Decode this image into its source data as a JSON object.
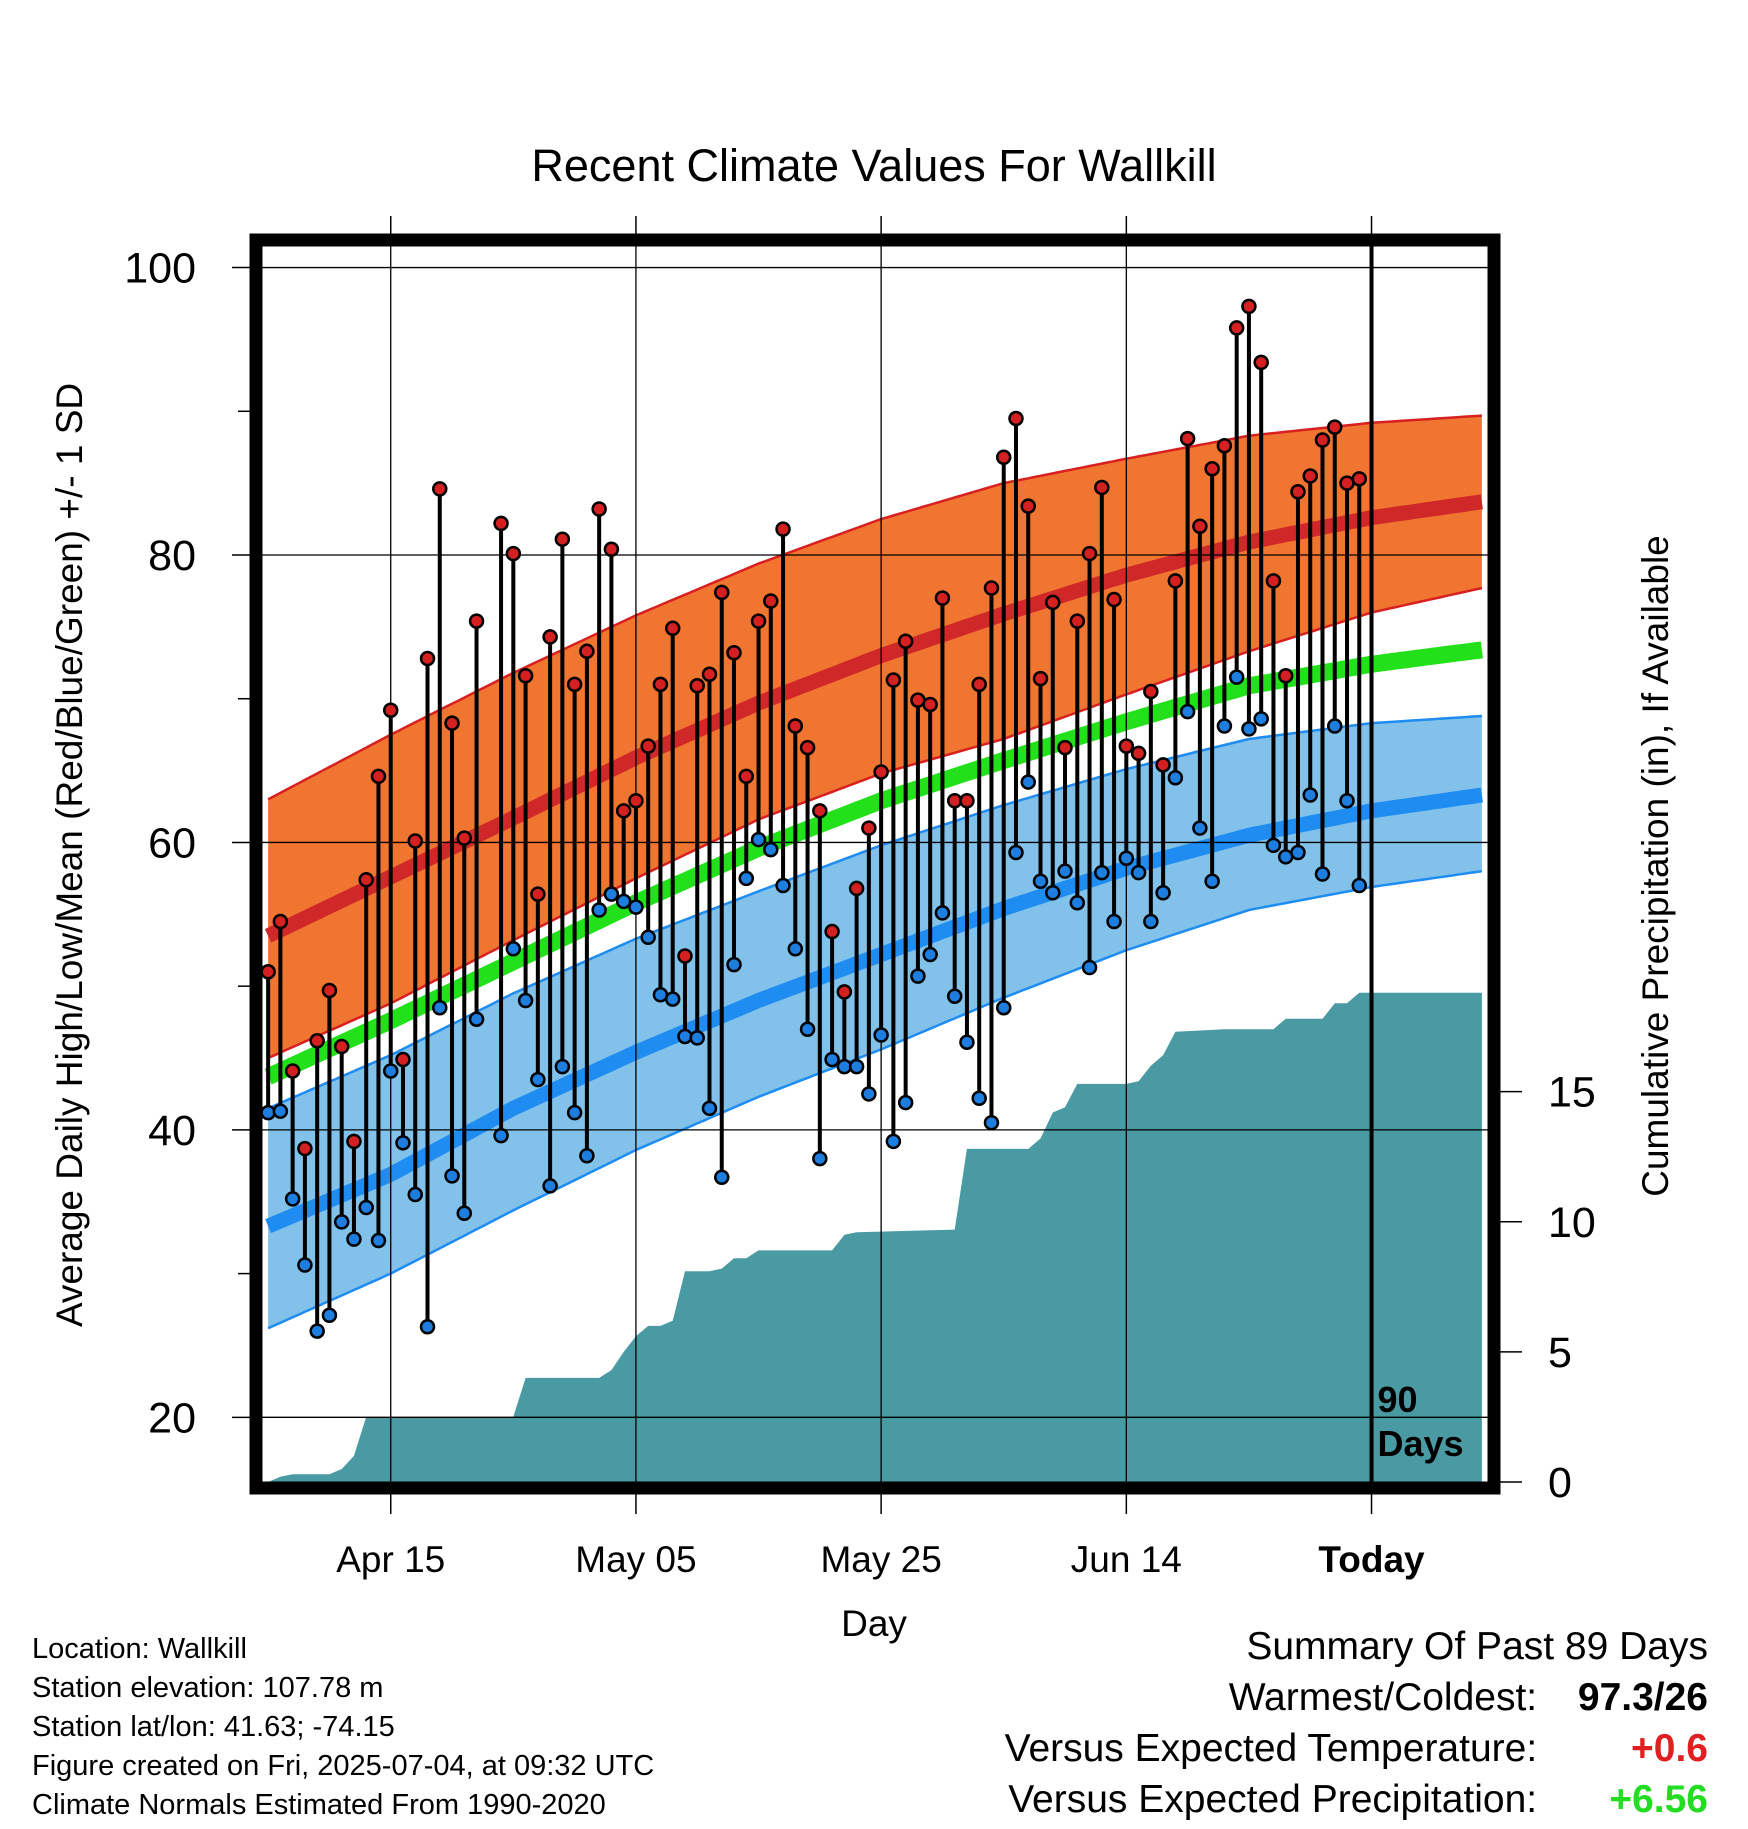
{
  "chart_data": {
    "type": "line",
    "title": "Recent Climate Values For Wallkill",
    "xlabel": "Day",
    "ylabel": "Average Daily High/Low/Mean (Red/Blue/Green) +/- 1 SD",
    "y2label": "Cumulative Precipitation (in), If Available",
    "ylim": [
      15.5,
      101.5
    ],
    "y2lim": [
      0,
      47.5
    ],
    "y_ticks": [
      "20",
      "40",
      "60",
      "80",
      "100"
    ],
    "y2_ticks": [
      "0",
      "5",
      "10",
      "15"
    ],
    "x_ticks": [
      "Apr 15",
      "May 05",
      "May 25",
      "Jun 14",
      "Today"
    ],
    "x_tick_days": [
      10,
      30,
      50,
      70,
      90
    ],
    "xlim": [
      -0.5,
      99.5
    ],
    "period_label": "90\nDays",
    "grid": true,
    "normal_high": {
      "mean": [
        [
          0,
          53.5
        ],
        [
          10,
          57.6
        ],
        [
          20,
          61.7
        ],
        [
          30,
          65.9
        ],
        [
          40,
          69.7
        ],
        [
          50,
          73.0
        ],
        [
          60,
          75.9
        ],
        [
          70,
          78.6
        ],
        [
          80,
          80.9
        ],
        [
          90,
          82.6
        ],
        [
          99,
          83.7
        ]
      ],
      "upper": [
        [
          0,
          63.0
        ],
        [
          10,
          67.5
        ],
        [
          20,
          71.8
        ],
        [
          30,
          75.8
        ],
        [
          40,
          79.4
        ],
        [
          50,
          82.5
        ],
        [
          60,
          85.0
        ],
        [
          70,
          86.7
        ],
        [
          80,
          88.3
        ],
        [
          90,
          89.2
        ],
        [
          99,
          89.7
        ]
      ],
      "lower": [
        [
          0,
          45.0
        ],
        [
          10,
          48.8
        ],
        [
          20,
          53.2
        ],
        [
          30,
          57.5
        ],
        [
          40,
          61.6
        ],
        [
          50,
          64.8
        ],
        [
          60,
          67.2
        ],
        [
          70,
          70.3
        ],
        [
          80,
          73.3
        ],
        [
          90,
          76.0
        ],
        [
          99,
          77.7
        ]
      ]
    },
    "normal_mean": [
      [
        0,
        43.7
      ],
      [
        10,
        47.6
      ],
      [
        20,
        51.7
      ],
      [
        30,
        55.8
      ],
      [
        40,
        59.6
      ],
      [
        50,
        62.9
      ],
      [
        60,
        65.7
      ],
      [
        70,
        68.4
      ],
      [
        80,
        70.9
      ],
      [
        90,
        72.4
      ],
      [
        99,
        73.4
      ]
    ],
    "normal_low": {
      "mean": [
        [
          0,
          33.3
        ],
        [
          10,
          36.9
        ],
        [
          20,
          41.5
        ],
        [
          30,
          45.4
        ],
        [
          40,
          49.0
        ],
        [
          50,
          52.2
        ],
        [
          60,
          55.4
        ],
        [
          70,
          58.2
        ],
        [
          80,
          60.5
        ],
        [
          90,
          62.2
        ],
        [
          99,
          63.3
        ]
      ],
      "upper": [
        [
          0,
          41.5
        ],
        [
          10,
          45.2
        ],
        [
          20,
          49.5
        ],
        [
          30,
          53.3
        ],
        [
          40,
          56.6
        ],
        [
          50,
          59.8
        ],
        [
          60,
          62.6
        ],
        [
          70,
          65.1
        ],
        [
          80,
          67.2
        ],
        [
          90,
          68.3
        ],
        [
          99,
          68.8
        ]
      ],
      "lower": [
        [
          0,
          26.2
        ],
        [
          10,
          30.0
        ],
        [
          20,
          34.4
        ],
        [
          30,
          38.6
        ],
        [
          40,
          42.3
        ],
        [
          50,
          45.6
        ],
        [
          60,
          49.2
        ],
        [
          70,
          52.5
        ],
        [
          80,
          55.3
        ],
        [
          90,
          56.9
        ],
        [
          99,
          58.0
        ]
      ]
    },
    "daily": [
      [
        0,
        51.0,
        41.2
      ],
      [
        1,
        54.5,
        41.3
      ],
      [
        2,
        44.1,
        35.2
      ],
      [
        3,
        38.7,
        30.6
      ],
      [
        4,
        46.2,
        26.0
      ],
      [
        5,
        49.7,
        27.1
      ],
      [
        6,
        45.8,
        33.6
      ],
      [
        7,
        39.2,
        32.4
      ],
      [
        8,
        57.4,
        34.6
      ],
      [
        9,
        64.6,
        32.3
      ],
      [
        10,
        69.2,
        44.1
      ],
      [
        11,
        44.9,
        39.1
      ],
      [
        12,
        60.1,
        35.5
      ],
      [
        13,
        72.8,
        26.3
      ],
      [
        14,
        84.6,
        48.5
      ],
      [
        15,
        68.3,
        36.8
      ],
      [
        16,
        60.3,
        34.2
      ],
      [
        17,
        75.4,
        47.7
      ],
      [
        19,
        82.2,
        39.6
      ],
      [
        20,
        80.1,
        52.6
      ],
      [
        21,
        71.6,
        49.0
      ],
      [
        22,
        56.4,
        43.5
      ],
      [
        23,
        74.3,
        36.1
      ],
      [
        24,
        81.1,
        44.4
      ],
      [
        25,
        71.0,
        41.2
      ],
      [
        26,
        73.3,
        38.2
      ],
      [
        27,
        83.2,
        55.3
      ],
      [
        28,
        80.4,
        56.4
      ],
      [
        29,
        62.2,
        55.9
      ],
      [
        30,
        62.9,
        55.5
      ],
      [
        31,
        66.7,
        53.4
      ],
      [
        32,
        71.0,
        49.4
      ],
      [
        33,
        74.9,
        49.1
      ],
      [
        34,
        52.1,
        46.5
      ],
      [
        35,
        70.9,
        46.4
      ],
      [
        36,
        71.7,
        41.5
      ],
      [
        37,
        77.4,
        36.7
      ],
      [
        38,
        73.2,
        51.5
      ],
      [
        39,
        64.6,
        57.5
      ],
      [
        40,
        75.4,
        60.2
      ],
      [
        41,
        76.8,
        59.5
      ],
      [
        42,
        81.8,
        57.0
      ],
      [
        43,
        68.1,
        52.6
      ],
      [
        44,
        66.6,
        47.0
      ],
      [
        45,
        62.2,
        38.0
      ],
      [
        46,
        53.8,
        44.9
      ],
      [
        47,
        49.6,
        44.4
      ],
      [
        48,
        56.8,
        44.4
      ],
      [
        49,
        61.0,
        42.5
      ],
      [
        50,
        64.9,
        46.6
      ],
      [
        51,
        71.3,
        39.2
      ],
      [
        52,
        74.0,
        41.9
      ],
      [
        53,
        69.9,
        50.7
      ],
      [
        54,
        69.6,
        52.2
      ],
      [
        55,
        77.0,
        55.1
      ],
      [
        56,
        62.9,
        49.3
      ],
      [
        57,
        62.9,
        46.1
      ],
      [
        58,
        71.0,
        42.2
      ],
      [
        59,
        77.7,
        40.5
      ],
      [
        60,
        86.8,
        48.5
      ],
      [
        61,
        89.5,
        59.3
      ],
      [
        62,
        83.4,
        64.2
      ],
      [
        63,
        71.4,
        57.3
      ],
      [
        64,
        76.7,
        56.5
      ],
      [
        65,
        66.6,
        58.0
      ],
      [
        66,
        75.4,
        55.8
      ],
      [
        67,
        80.1,
        51.3
      ],
      [
        68,
        84.7,
        57.9
      ],
      [
        69,
        76.9,
        54.5
      ],
      [
        70,
        66.7,
        58.9
      ],
      [
        71,
        66.2,
        57.9
      ],
      [
        72,
        70.5,
        54.5
      ],
      [
        73,
        65.4,
        56.5
      ],
      [
        74,
        78.2,
        64.5
      ],
      [
        75,
        88.1,
        69.1
      ],
      [
        76,
        82.0,
        61.0
      ],
      [
        77,
        86.0,
        57.3
      ],
      [
        78,
        87.6,
        68.1
      ],
      [
        79,
        95.8,
        71.5
      ],
      [
        80,
        97.3,
        67.9
      ],
      [
        81,
        93.4,
        68.6
      ],
      [
        82,
        78.2,
        59.8
      ],
      [
        83,
        71.6,
        59.0
      ],
      [
        84,
        84.4,
        59.3
      ],
      [
        85,
        85.5,
        63.3
      ],
      [
        86,
        88.0,
        57.8
      ],
      [
        87,
        88.9,
        68.1
      ],
      [
        88,
        85.0,
        62.9
      ],
      [
        89,
        85.3,
        57.0
      ]
    ],
    "precip_cumulative": [
      [
        0,
        0.0
      ],
      [
        1,
        0.2
      ],
      [
        2,
        0.3
      ],
      [
        5,
        0.3
      ],
      [
        6,
        0.5
      ],
      [
        7,
        1.0
      ],
      [
        8,
        2.5
      ],
      [
        20,
        2.5
      ],
      [
        21,
        4.0
      ],
      [
        27,
        4.0
      ],
      [
        28,
        4.3
      ],
      [
        29,
        5.0
      ],
      [
        30,
        5.6
      ],
      [
        31,
        6.0
      ],
      [
        32,
        6.0
      ],
      [
        33,
        6.2
      ],
      [
        34,
        8.1
      ],
      [
        36,
        8.1
      ],
      [
        37,
        8.2
      ],
      [
        38,
        8.6
      ],
      [
        39,
        8.6
      ],
      [
        40,
        8.9
      ],
      [
        46,
        8.9
      ],
      [
        47,
        9.5
      ],
      [
        48,
        9.6
      ],
      [
        56,
        9.7
      ],
      [
        57,
        12.8
      ],
      [
        62,
        12.8
      ],
      [
        63,
        13.2
      ],
      [
        64,
        14.2
      ],
      [
        65,
        14.4
      ],
      [
        66,
        15.3
      ],
      [
        70,
        15.3
      ],
      [
        71,
        15.4
      ],
      [
        72,
        16.0
      ],
      [
        73,
        16.4
      ],
      [
        74,
        17.3
      ],
      [
        78,
        17.4
      ],
      [
        82,
        17.4
      ],
      [
        83,
        17.8
      ],
      [
        86,
        17.8
      ],
      [
        87,
        18.4
      ],
      [
        88,
        18.4
      ],
      [
        89,
        18.8
      ],
      [
        99,
        18.8
      ]
    ]
  },
  "info": {
    "location": "Location: Wallkill",
    "elevation": "Station elevation: 107.78 m",
    "latlon": "Station lat/lon: 41.63; -74.15",
    "created": "Figure created on Fri, 2025-07-04, at 09:32 UTC",
    "normals": "Climate Normals Estimated From 1990-2020"
  },
  "summary": {
    "title": "Summary Of Past 89 Days",
    "warmest_label": "Warmest/Coldest:",
    "warmest_value": "97.3/26",
    "temp_label": "Versus Expected Temperature:",
    "temp_value": "+0.6",
    "precip_label": "Versus Expected Precipitation:",
    "precip_value": "+6.56"
  },
  "colors": {
    "high_band": "#f07530",
    "high_line": "#d02828",
    "high_edge": "#d82020",
    "mean_line": "#22e01a",
    "low_band": "#82c2ea",
    "low_line": "#1e8cf0",
    "low_edge": "#1e8cf0",
    "precip": "#4a9aa4",
    "high_dot": "#d42020",
    "low_dot": "#1e7ee0",
    "positive_temp": "#e02020",
    "positive_precip": "#22dd22"
  }
}
